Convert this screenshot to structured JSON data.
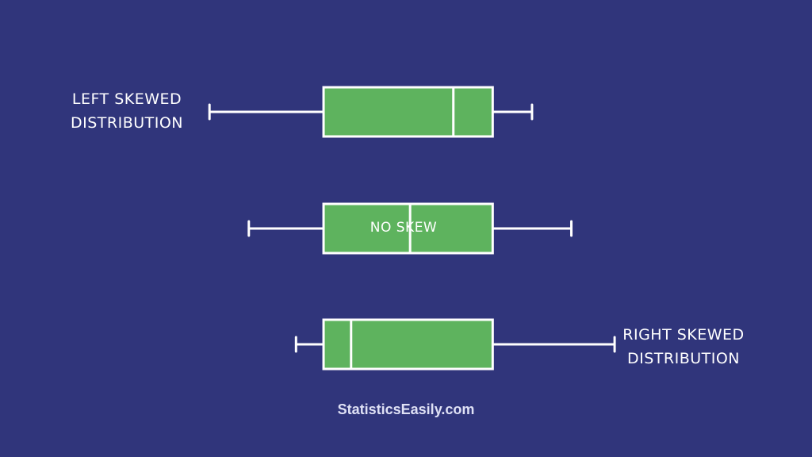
{
  "labels": {
    "left_line1": "LEFT SKEWED",
    "left_line2": "DISTRIBUTION",
    "center": "NO SKEW",
    "right_line1": "RIGHT SKEWED",
    "right_line2": "DISTRIBUTION"
  },
  "brand": "StatisticsEasily.com",
  "colors": {
    "background": "#30357b",
    "box_fill": "#5eb35e",
    "stroke": "#ffffff",
    "text": "#ffffff"
  },
  "boxplots": [
    {
      "id": "left-skewed",
      "min": 2,
      "q1": 4.9,
      "median": 8.2,
      "q3": 9.2,
      "max": 10.2
    },
    {
      "id": "no-skew",
      "min": 3,
      "q1": 4.9,
      "median": 7.1,
      "q3": 9.2,
      "max": 11.2
    },
    {
      "id": "right-skewed",
      "min": 4.2,
      "q1": 4.9,
      "median": 5.6,
      "q3": 9.2,
      "max": 12.3
    }
  ]
}
